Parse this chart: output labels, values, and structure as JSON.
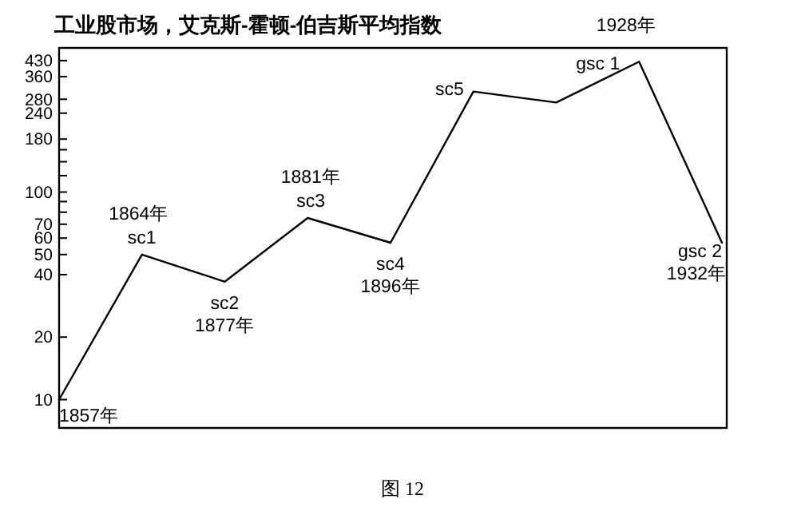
{
  "chart_data": {
    "type": "line",
    "title": "工业股市场，艾克斯-霍顿-伯吉斯平均指数",
    "categories": [
      null,
      null,
      null,
      null,
      null,
      null,
      null,
      null,
      null
    ],
    "series": [
      {
        "color": "#000000",
        "values": [
          10,
          50,
          37,
          75,
          57,
          305,
          270,
          425,
          57
        ]
      }
    ],
    "ylim": [
      7.3,
      495
    ],
    "log": "y",
    "yticks": [
      10,
      20,
      40,
      50,
      60,
      70,
      {
        "value": 80,
        "label": null
      },
      {
        "value": 90,
        "label": null
      },
      100,
      {
        "value": 120,
        "label": null
      },
      {
        "value": 140,
        "label": null
      },
      {
        "value": 160,
        "label": null
      },
      180,
      240,
      280,
      360,
      430
    ],
    "tick_labels": "y",
    "grid": false,
    "marker": "none",
    "line_style": "solid",
    "annotations": [
      "1857年",
      "1864年",
      "sc1",
      "sc2",
      "1877年",
      "1881年",
      "sc3",
      "sc4",
      "1896年",
      "sc5",
      "gsc 1",
      "1928年",
      "gsc 2",
      "1932年",
      "图 12"
    ]
  }
}
